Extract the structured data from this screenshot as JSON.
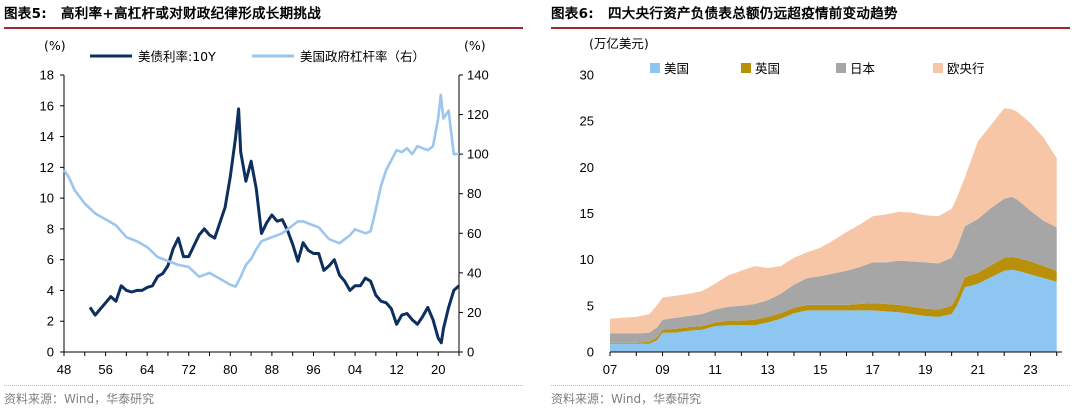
{
  "left": {
    "figure_no": "图表5:",
    "title": "高利率+高杠杆或对财政纪律形成长期挑战",
    "source": "资料来源：Wind，华泰研究",
    "chart_data": {
      "type": "line",
      "left_unit": "(%)",
      "right_unit": "(%)",
      "y_left_ticks": [
        "0",
        "2",
        "4",
        "6",
        "8",
        "10",
        "12",
        "14",
        "16",
        "18"
      ],
      "y_right_ticks": [
        "0",
        "20",
        "40",
        "60",
        "80",
        "100",
        "120",
        "140"
      ],
      "x_ticks": [
        "48",
        "56",
        "64",
        "72",
        "80",
        "88",
        "96",
        "04",
        "12",
        "20"
      ],
      "ylim_left": [
        0,
        18
      ],
      "ylim_right": [
        0,
        140
      ],
      "xlim": [
        1948,
        2024
      ],
      "legend_placement": "top",
      "series": [
        {
          "name": "美债利率:10Y",
          "axis": "left",
          "color": "#0d2f5f",
          "x": [
            1953,
            1954,
            1955,
            1956,
            1957,
            1958,
            1959,
            1960,
            1961,
            1962,
            1963,
            1964,
            1965,
            1966,
            1967,
            1968,
            1969,
            1970,
            1971,
            1972,
            1973,
            1974,
            1975,
            1976,
            1977,
            1978,
            1979,
            1980,
            1981,
            1981.6,
            1982,
            1983,
            1984,
            1985,
            1986,
            1987,
            1988,
            1989,
            1990,
            1991,
            1992,
            1993,
            1994,
            1995,
            1996,
            1997,
            1998,
            1999,
            2000,
            2001,
            2002,
            2003,
            2004,
            2005,
            2006,
            2007,
            2008,
            2009,
            2010,
            2011,
            2012,
            2013,
            2014,
            2015,
            2016,
            2017,
            2018,
            2019,
            2020,
            2020.6,
            2021,
            2022,
            2023,
            2024
          ],
          "values": [
            2.9,
            2.4,
            2.8,
            3.2,
            3.6,
            3.3,
            4.3,
            4.0,
            3.9,
            4.0,
            4.0,
            4.2,
            4.3,
            4.9,
            5.1,
            5.6,
            6.7,
            7.4,
            6.2,
            6.2,
            6.9,
            7.6,
            8.0,
            7.6,
            7.4,
            8.4,
            9.4,
            11.4,
            13.9,
            15.8,
            13.0,
            11.1,
            12.4,
            10.6,
            7.7,
            8.4,
            8.9,
            8.5,
            8.6,
            7.9,
            7.0,
            5.9,
            7.1,
            6.6,
            6.4,
            6.4,
            5.3,
            5.6,
            6.0,
            5.0,
            4.6,
            4.0,
            4.3,
            4.3,
            4.8,
            4.6,
            3.7,
            3.3,
            3.2,
            2.8,
            1.8,
            2.4,
            2.5,
            2.1,
            1.8,
            2.3,
            2.9,
            2.1,
            0.9,
            0.6,
            1.5,
            2.9,
            4.0,
            4.3
          ]
        },
        {
          "name": "美国政府杠杆率（右）",
          "axis": "right",
          "color": "#9dc6ef",
          "x": [
            1948,
            1949,
            1950,
            1952,
            1954,
            1956,
            1958,
            1960,
            1962,
            1964,
            1966,
            1968,
            1970,
            1972,
            1974,
            1976,
            1978,
            1980,
            1981,
            1982,
            1983,
            1984,
            1985,
            1986,
            1987,
            1988,
            1990,
            1992,
            1993,
            1994,
            1995,
            1996,
            1997,
            1998,
            1999,
            2000,
            2001,
            2002,
            2003,
            2004,
            2005,
            2006,
            2007,
            2008,
            2009,
            2010,
            2011,
            2012,
            2013,
            2014,
            2015,
            2016,
            2017,
            2018,
            2019,
            2020,
            2020.5,
            2021,
            2022,
            2023,
            2024
          ],
          "values": [
            92,
            88,
            82,
            75,
            70,
            67,
            64,
            58,
            56,
            53,
            48,
            46,
            44,
            43,
            38,
            40,
            37,
            34,
            33,
            38,
            44,
            47,
            52,
            56,
            57,
            58,
            60,
            64,
            66,
            66,
            65,
            64,
            63,
            60,
            57,
            56,
            55,
            57,
            59,
            62,
            61,
            60,
            61,
            72,
            84,
            92,
            97,
            102,
            101,
            103,
            100,
            104,
            103,
            102,
            104,
            118,
            130,
            118,
            122,
            100,
            100
          ]
        }
      ]
    }
  },
  "right": {
    "figure_no": "图表6:",
    "title": "四大央行资产负债表总额仍远超疫情前变动趋势",
    "source": "资料来源：Wind，华泰研究",
    "chart_data": {
      "type": "area",
      "stacked": true,
      "unit": "(万亿美元)",
      "y_ticks": [
        "0",
        "5",
        "10",
        "15",
        "20",
        "25",
        "30"
      ],
      "x_ticks": [
        "07",
        "09",
        "11",
        "13",
        "15",
        "17",
        "19",
        "21",
        "23"
      ],
      "ylim": [
        0,
        30
      ],
      "xlim": [
        2007,
        2024.2
      ],
      "legend_placement": "top",
      "x": [
        2007,
        2007.5,
        2008,
        2008.5,
        2008.8,
        2009,
        2009.5,
        2010,
        2010.5,
        2011,
        2011.5,
        2012,
        2012.5,
        2013,
        2013.5,
        2014,
        2014.5,
        2015,
        2015.5,
        2016,
        2016.5,
        2017,
        2017.5,
        2018,
        2018.5,
        2019,
        2019.5,
        2020,
        2020.2,
        2020.5,
        2021,
        2021.5,
        2022,
        2022.3,
        2022.5,
        2023,
        2023.5,
        2024
      ],
      "series": [
        {
          "name": "美国",
          "color": "#8ec6f2",
          "values": [
            0.9,
            0.9,
            0.9,
            0.9,
            1.3,
            2.1,
            2.1,
            2.3,
            2.4,
            2.8,
            2.9,
            2.9,
            2.9,
            3.2,
            3.6,
            4.2,
            4.5,
            4.5,
            4.5,
            4.5,
            4.5,
            4.5,
            4.4,
            4.3,
            4.1,
            3.9,
            3.8,
            4.1,
            5.0,
            7.0,
            7.4,
            8.1,
            8.8,
            8.9,
            8.8,
            8.4,
            8.0,
            7.6
          ]
        },
        {
          "name": "英国",
          "color": "#b8900a",
          "values": [
            0.1,
            0.1,
            0.1,
            0.2,
            0.3,
            0.3,
            0.4,
            0.4,
            0.4,
            0.4,
            0.5,
            0.5,
            0.6,
            0.6,
            0.6,
            0.6,
            0.6,
            0.6,
            0.6,
            0.6,
            0.7,
            0.8,
            0.8,
            0.8,
            0.8,
            0.8,
            0.8,
            0.9,
            1.0,
            1.1,
            1.2,
            1.3,
            1.4,
            1.4,
            1.4,
            1.4,
            1.3,
            1.2
          ]
        },
        {
          "name": "日本",
          "color": "#a6a6a6",
          "values": [
            1.0,
            1.0,
            1.0,
            1.0,
            1.1,
            1.1,
            1.2,
            1.2,
            1.3,
            1.4,
            1.5,
            1.6,
            1.7,
            1.8,
            2.1,
            2.5,
            2.9,
            3.1,
            3.4,
            3.7,
            4.0,
            4.4,
            4.5,
            4.8,
            4.9,
            5.0,
            5.0,
            5.2,
            5.3,
            5.5,
            5.8,
            6.2,
            6.4,
            6.5,
            6.3,
            5.5,
            4.9,
            4.7
          ]
        },
        {
          "name": "欧央行",
          "color": "#f7c6a6",
          "values": [
            1.6,
            1.7,
            1.8,
            2.0,
            2.4,
            2.4,
            2.4,
            2.4,
            2.5,
            2.8,
            3.4,
            3.8,
            4.1,
            3.5,
            3.0,
            2.9,
            2.8,
            3.1,
            3.6,
            4.2,
            4.6,
            5.0,
            5.2,
            5.3,
            5.3,
            5.1,
            5.1,
            5.3,
            5.4,
            5.3,
            8.4,
            9.0,
            9.8,
            9.5,
            9.5,
            9.5,
            9.0,
            7.5
          ]
        }
      ]
    }
  }
}
